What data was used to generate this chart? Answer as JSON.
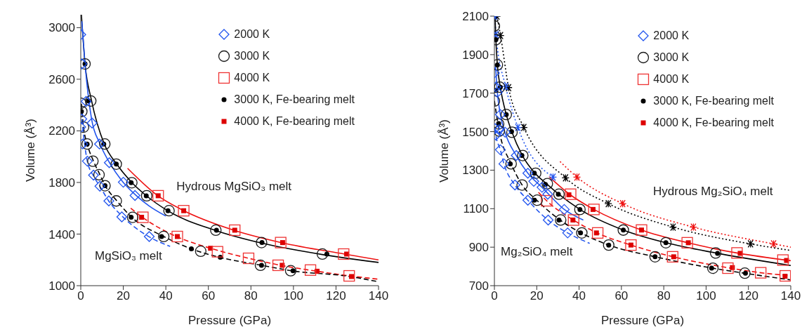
{
  "chart_data": [
    {
      "type": "scatter",
      "xlabel": "Pressure (GPa)",
      "ylabel": "Volume (Å³)",
      "xlim": [
        0,
        140
      ],
      "xticks": [
        0,
        20,
        40,
        60,
        80,
        100,
        120,
        140
      ],
      "ylim": [
        1000,
        3100
      ],
      "yticks": [
        1000,
        1400,
        1800,
        2200,
        2600,
        3000
      ],
      "legend": "top right",
      "grid": false,
      "annotations": [
        "Hydrous MgSiO₃ melt",
        "MgSiO₃ melt"
      ],
      "series": [
        {
          "name": "2000 K",
          "color": "#2255ee",
          "marker": "diamond",
          "x": [
            0,
            0.5,
            2.5,
            5.3,
            0.5,
            0,
            0.9,
            8.8,
            3.1,
            6,
            9,
            13.4,
            20,
            25.5,
            13.2,
            19.3,
            32.2
          ],
          "values": [
            2946,
            2719,
            2428,
            2261,
            2292,
            2229,
            2098,
            2098,
            1965,
            1857,
            1771,
            1953,
            1802,
            1699,
            1657,
            1533,
            1381
          ]
        },
        {
          "name": "3000 K",
          "color": "#1a1a1a",
          "marker": "circle",
          "x": [
            0,
            0.5,
            1.3,
            2,
            4.7,
            3,
            11.3,
            5.7,
            8.6,
            11.4,
            16.7,
            16.7,
            24,
            24.4,
            31,
            39,
            41.5,
            56.4,
            63.5,
            85,
            98.7,
            84.5,
            113.6
          ],
          "values": [
            2414,
            2350,
            2229,
            2719,
            2432,
            2098,
            2098,
            1965,
            1860,
            1775,
            1657,
            1942,
            1798,
            1530,
            1697,
            1381,
            1581,
            1267,
            1430,
            1334,
            1116,
            1158,
            1245
          ]
        },
        {
          "name": "4000 K",
          "color": "#ee3333",
          "marker": "square",
          "x": [
            36.4,
            48.4,
            29.2,
            45.4,
            64.3,
            72.4,
            78.9,
            94,
            92.8,
            108,
            123.6,
            126.2
          ],
          "values": [
            1697,
            1581,
            1530,
            1381,
            1263,
            1430,
            1212,
            1334,
            1158,
            1121,
            1245,
            1076
          ]
        },
        {
          "name": "3000 K, Fe-bearing melt",
          "color": "#000000",
          "marker": "circle",
          "x": [
            0.3,
            2,
            3.6,
            3,
            10.8,
            11.4,
            16.7,
            23.7,
            23.7,
            30.8,
            38,
            41,
            52,
            63.8,
            65.6,
            85.2,
            85,
            99.8,
            115.7
          ],
          "values": [
            2350,
            2719,
            2432,
            2098,
            2098,
            1775,
            1942,
            1798,
            1530,
            1697,
            1381,
            1581,
            1285,
            1430,
            1221,
            1334,
            1158,
            1116,
            1245
          ]
        },
        {
          "name": "4000 K, Fe-bearing melt",
          "color": "#dd0000",
          "marker": "square",
          "x": [
            36.4,
            48.4,
            28.6,
            45.4,
            61,
            72.4,
            94.9,
            94.7,
            111.1,
            125,
            127.3
          ],
          "values": [
            1697,
            1581,
            1530,
            1381,
            1290,
            1430,
            1334,
            1158,
            1112,
            1245,
            1071
          ]
        },
        {
          "type": "line",
          "color": "#2255ee",
          "marker": "none",
          "line_style": "solid",
          "x": [
            0.5,
            2,
            5,
            9,
            14,
            20,
            26,
            32,
            40
          ],
          "values": [
            3050,
            2720,
            2300,
            2100,
            1940,
            1800,
            1700,
            1620,
            1540
          ]
        },
        {
          "type": "line",
          "color": "#000000",
          "marker": "none",
          "line_style": "solid",
          "x": [
            0.3,
            2,
            5,
            11,
            17,
            24,
            31,
            41,
            63,
            85,
            114,
            140
          ],
          "values": [
            3100,
            2720,
            2440,
            2100,
            1940,
            1800,
            1695,
            1580,
            1430,
            1330,
            1240,
            1180
          ]
        },
        {
          "type": "line",
          "color": "#ee1111",
          "marker": "none",
          "line_style": "solid",
          "x": [
            22,
            36,
            48,
            72,
            94,
            124,
            140
          ],
          "values": [
            1910,
            1700,
            1585,
            1430,
            1335,
            1245,
            1200
          ]
        },
        {
          "type": "line",
          "color": "#2255ee",
          "marker": "none",
          "line_style": "dashed",
          "x": [
            0.5,
            3,
            6,
            9,
            13,
            20,
            32,
            42
          ],
          "values": [
            2290,
            1970,
            1850,
            1770,
            1660,
            1530,
            1380,
            1305
          ]
        },
        {
          "type": "line",
          "color": "#000000",
          "marker": "none",
          "line_style": "dashed",
          "x": [
            0.3,
            1.3,
            3,
            6,
            9,
            11.5,
            17,
            24,
            39,
            52,
            65,
            85,
            99,
            127,
            140
          ],
          "values": [
            2410,
            2230,
            2100,
            1965,
            1860,
            1775,
            1657,
            1530,
            1381,
            1285,
            1221,
            1158,
            1116,
            1070,
            1030
          ]
        },
        {
          "type": "line",
          "color": "#ee1111",
          "marker": "none",
          "line_style": "dashed",
          "x": [
            23.5,
            29,
            45,
            61,
            79,
            94,
            111,
            127,
            140
          ],
          "values": [
            1600,
            1530,
            1381,
            1290,
            1212,
            1158,
            1112,
            1075,
            1050
          ]
        }
      ]
    },
    {
      "type": "scatter",
      "xlabel": "Pressure (GPa)",
      "ylabel": "Volume (Å³)",
      "xlim": [
        0,
        140
      ],
      "xticks": [
        0,
        20,
        40,
        60,
        80,
        100,
        120,
        140
      ],
      "ylim": [
        700,
        2100
      ],
      "yticks": [
        700,
        900,
        1100,
        1300,
        1500,
        1700,
        1900,
        2100
      ],
      "legend": "top right",
      "grid": false,
      "annotations": [
        "Hydrous Mg₂SiO₄ melt",
        "Mg₂SiO₄ melt"
      ],
      "series": [
        {
          "name": "2000 K",
          "color": "#2255ee",
          "marker": "diamond",
          "x": [
            0,
            0.7,
            1.4,
            2.8,
            0.3,
            0.7,
            2.2,
            5.1,
            2.8,
            4.5,
            10.3,
            9.7,
            15.8,
            18.6,
            22.5,
            25.2,
            15.8,
            33,
            25.4,
            34.6
          ],
          "values": [
            1805,
            1732,
            1704,
            1589,
            1516,
            1482,
            1510,
            1497,
            1406,
            1333,
            1376,
            1223,
            1284,
            1242,
            1211,
            1175,
            1144,
            1096,
            1041,
            974
          ]
        },
        {
          "name": "3000 K",
          "color": "#1a1a1a",
          "marker": "circle",
          "x": [
            0,
            0.7,
            1.4,
            2.5,
            0,
            2,
            2.3,
            5.6,
            8.3,
            7.9,
            13.4,
            13.1,
            19.5,
            25,
            20.2,
            30.5,
            31.3,
            40.4,
            41.3,
            54,
            60.9,
            75.9,
            81,
            104.5,
            103.2,
            118.3
          ],
          "values": [
            2049,
            1978,
            1847,
            1731,
            1659,
            1540,
            1503,
            1589,
            1497,
            1333,
            1376,
            1223,
            1284,
            1230,
            1144,
            1175,
            1041,
            1096,
            974,
            911,
            989,
            850,
            923,
            870,
            791,
            765
          ]
        },
        {
          "name": "4000 K",
          "color": "#ee3333",
          "marker": "square",
          "x": [
            36,
            47,
            24.7,
            37.4,
            48.8,
            64.5,
            69.5,
            84.2,
            91.1,
            110.3,
            114.6,
            125.8,
            136.3,
            137.4
          ],
          "values": [
            1175,
            1096,
            1141,
            1041,
            974,
            911,
            989,
            850,
            923,
            791,
            870,
            767,
            833,
            751
          ]
        },
        {
          "name": "3000 K, Fe-bearing melt",
          "color": "#000000",
          "marker": "circle",
          "x": [
            0.7,
            0.7,
            1.4,
            2.8,
            2,
            5.6,
            8.1,
            7.5,
            13,
            18.9,
            24.1,
            18.9,
            30.2,
            30.5,
            40.4,
            40.7,
            54,
            60.9,
            75.9,
            81,
            105.4,
            102.6,
            118.6
          ],
          "values": [
            1978,
            1714,
            1847,
            1731,
            1542,
            1589,
            1500,
            1333,
            1376,
            1284,
            1226,
            1144,
            1175,
            1041,
            1096,
            974,
            911,
            989,
            850,
            923,
            868,
            791,
            765
          ]
        },
        {
          "name": "4000 K, Fe-bearing melt",
          "color": "#dd0000",
          "marker": "square",
          "x": [
            35.2,
            46.6,
            37.1,
            48.2,
            64.5,
            69.5,
            84.7,
            91.6,
            112.4,
            116.1,
            138,
            137.3
          ],
          "values": [
            1172,
            1096,
            1041,
            974,
            911,
            989,
            850,
            923,
            794,
            868,
            831,
            749
          ]
        },
        {
          "color": "#2255ee",
          "marker": "cross",
          "x": [
            0,
            0.7,
            5.3,
            11.1,
            27.7
          ],
          "values": [
            2100,
            2005,
            1735,
            1522,
            1264
          ]
        },
        {
          "color": "#000000",
          "marker": "cross",
          "x": [
            1.2,
            2.9,
            6.7,
            13.9,
            33.6,
            53.8,
            84.4,
            121
          ],
          "values": [
            2100,
            1999,
            1729,
            1522,
            1260,
            1126,
            1004,
            917
          ]
        },
        {
          "color": "#ee1111",
          "marker": "cross",
          "x": [
            39,
            60.6,
            94,
            131.9
          ],
          "values": [
            1264,
            1126,
            1004,
            917
          ]
        },
        {
          "type": "line",
          "color": "#2255ee",
          "marker": "none",
          "line_style": "solid",
          "x": [
            0.5,
            1.4,
            2.8,
            5,
            10.3,
            15.8,
            22.5,
            33,
            42
          ],
          "values": [
            1850,
            1704,
            1589,
            1497,
            1376,
            1284,
            1211,
            1096,
            1041
          ]
        },
        {
          "type": "line",
          "color": "#000000",
          "marker": "none",
          "line_style": "solid",
          "x": [
            0.3,
            0.7,
            1.4,
            2.8,
            5.6,
            8.2,
            13.2,
            19.2,
            25,
            30.4,
            40.4,
            60.9,
            81,
            104.5,
            140
          ],
          "values": [
            2100,
            1978,
            1847,
            1731,
            1589,
            1500,
            1376,
            1284,
            1226,
            1175,
            1096,
            989,
            923,
            870,
            805
          ]
        },
        {
          "type": "line",
          "color": "#ee1111",
          "marker": "none",
          "line_style": "solid",
          "x": [
            25.8,
            35.6,
            47,
            69.5,
            91.3,
            115,
            140
          ],
          "values": [
            1266,
            1174,
            1096,
            989,
            923,
            869,
            830
          ]
        },
        {
          "type": "line",
          "color": "#2255ee",
          "marker": "none",
          "line_style": "dashed",
          "x": [
            0.3,
            0.7,
            2.8,
            4.5,
            9.7,
            15.8,
            25.3,
            34.6,
            45
          ],
          "values": [
            1516,
            1482,
            1406,
            1333,
            1223,
            1144,
            1041,
            974,
            920
          ]
        },
        {
          "type": "line",
          "color": "#000000",
          "marker": "none",
          "line_style": "dashed",
          "x": [
            0,
            2.3,
            7.9,
            13.1,
            20,
            31,
            41,
            54,
            76,
            103,
            118,
            140
          ],
          "values": [
            1660,
            1503,
            1333,
            1223,
            1144,
            1041,
            974,
            911,
            850,
            791,
            765,
            730
          ]
        },
        {
          "type": "line",
          "color": "#ee1111",
          "marker": "none",
          "line_style": "dashed",
          "x": [
            20.8,
            24.7,
            37.3,
            48.5,
            64.5,
            84.5,
            111,
            126,
            140
          ],
          "values": [
            1185,
            1141,
            1041,
            974,
            911,
            850,
            792,
            767,
            752
          ]
        },
        {
          "type": "line",
          "color": "#2255ee",
          "marker": "none",
          "line_style": "dotted",
          "x": [
            0.3,
            0.7,
            5.3,
            11.1,
            27.7
          ],
          "values": [
            2100,
            2005,
            1735,
            1522,
            1264
          ]
        },
        {
          "type": "line",
          "color": "#000000",
          "marker": "none",
          "line_style": "dotted",
          "x": [
            1.2,
            2.9,
            6.7,
            13.9,
            33.6,
            53.8,
            84.4,
            121,
            140
          ],
          "values": [
            2100,
            1999,
            1729,
            1522,
            1260,
            1126,
            1004,
            917,
            883
          ]
        },
        {
          "type": "line",
          "color": "#ee1111",
          "marker": "none",
          "line_style": "dotted",
          "x": [
            31,
            39,
            60.6,
            94,
            131.9,
            140
          ],
          "values": [
            1345,
            1264,
            1126,
            1004,
            917,
            900
          ]
        }
      ]
    }
  ]
}
